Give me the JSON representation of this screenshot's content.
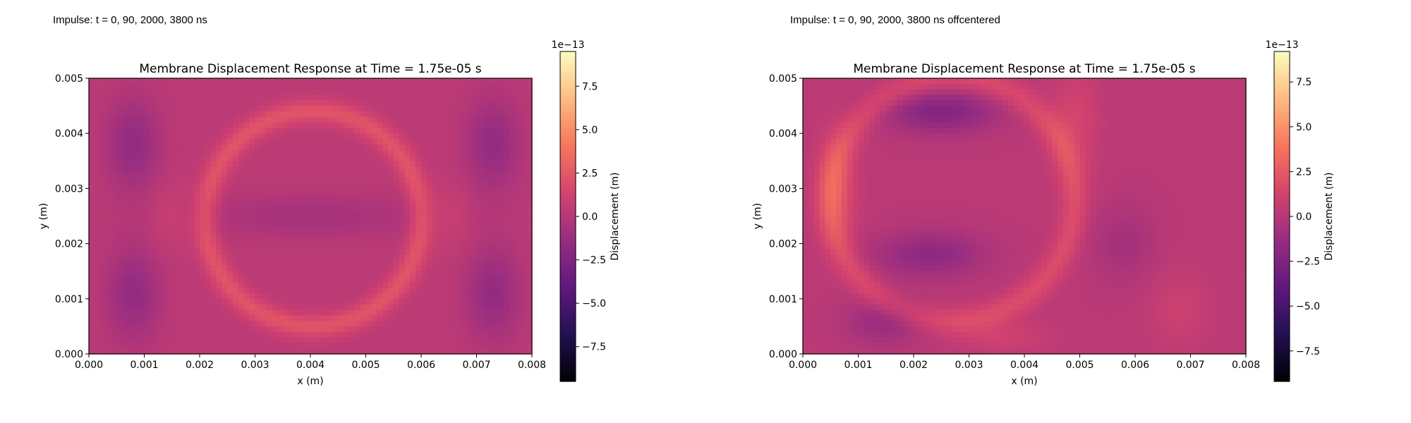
{
  "captions": {
    "left": "Impulse: t = 0, 90, 2000, 3800 ns",
    "right": "Impulse: t = 0, 90, 2000, 3800 ns offcentered"
  },
  "colormap": {
    "name": "magma",
    "stops": [
      "#000004",
      "#221150",
      "#5f187f",
      "#982d80",
      "#d3436e",
      "#f8765c",
      "#febb81",
      "#fcfdbf"
    ]
  },
  "chart_data": [
    {
      "type": "heatmap",
      "title": "Membrane Displacement Response at Time = 1.75e-05 s",
      "xlabel": "x (m)",
      "ylabel": "y (m)",
      "xlim": [
        0.0,
        0.008
      ],
      "ylim": [
        0.0,
        0.005
      ],
      "xticks": [
        "0.000",
        "0.001",
        "0.002",
        "0.003",
        "0.004",
        "0.005",
        "0.006",
        "0.007",
        "0.008"
      ],
      "yticks": [
        "0.000",
        "0.001",
        "0.002",
        "0.003",
        "0.004",
        "0.005"
      ],
      "colorbar": {
        "label": "Displacement (m)",
        "exponent_label": "1e−13",
        "range": [
          -9.5,
          9.5
        ],
        "ticks": [
          "−7.5",
          "−5.0",
          "−2.5",
          "0.0",
          "2.5",
          "5.0",
          "7.5"
        ],
        "tick_values": [
          -7.5,
          -5.0,
          -2.5,
          0.0,
          2.5,
          5.0,
          7.5
        ]
      },
      "field": {
        "base": 0.3,
        "features": [
          {
            "shape": "ring",
            "x": 0.00405,
            "y": 0.00245,
            "rx": 0.00195,
            "ry": 0.00195,
            "width": 0.00022,
            "amp": 2.0
          },
          {
            "shape": "blob",
            "x": 0.004,
            "y": 0.0025,
            "sx": 0.0016,
            "sy": 0.0003,
            "amp": -1.0
          },
          {
            "shape": "blob",
            "x": 0.0008,
            "y": 0.0038,
            "sx": 0.00035,
            "sy": 0.0006,
            "amp": -1.9
          },
          {
            "shape": "blob",
            "x": 0.0073,
            "y": 0.0038,
            "sx": 0.00035,
            "sy": 0.0006,
            "amp": -1.9
          },
          {
            "shape": "blob",
            "x": 0.0008,
            "y": 0.0011,
            "sx": 0.00035,
            "sy": 0.0006,
            "amp": -1.9
          },
          {
            "shape": "blob",
            "x": 0.0073,
            "y": 0.0011,
            "sx": 0.00035,
            "sy": 0.0006,
            "amp": -1.9
          },
          {
            "shape": "blob",
            "x": 0.0015,
            "y": 0.0025,
            "sx": 0.0003,
            "sy": 0.0004,
            "amp": 0.8
          },
          {
            "shape": "blob",
            "x": 0.0065,
            "y": 0.0025,
            "sx": 0.0003,
            "sy": 0.0004,
            "amp": 0.8
          }
        ]
      }
    },
    {
      "type": "heatmap",
      "title": "Membrane Displacement Response at Time = 1.75e-05 s",
      "xlabel": "x (m)",
      "ylabel": "y (m)",
      "xlim": [
        0.0,
        0.008
      ],
      "ylim": [
        0.0,
        0.005
      ],
      "xticks": [
        "0.000",
        "0.001",
        "0.002",
        "0.003",
        "0.004",
        "0.005",
        "0.006",
        "0.007",
        "0.008"
      ],
      "yticks": [
        "0.000",
        "0.001",
        "0.002",
        "0.003",
        "0.004",
        "0.005"
      ],
      "colorbar": {
        "label": "Displacement (m)",
        "exponent_label": "1e−13",
        "range": [
          -9.2,
          9.2
        ],
        "ticks": [
          "−7.5",
          "−5.0",
          "−2.5",
          "0.0",
          "2.5",
          "5.0",
          "7.5"
        ],
        "tick_values": [
          -7.5,
          -5.0,
          -2.5,
          0.0,
          2.5,
          5.0,
          7.5
        ]
      },
      "field": {
        "base": 0.2,
        "features": [
          {
            "shape": "ring",
            "x": 0.0027,
            "y": 0.0028,
            "rx": 0.0022,
            "ry": 0.0022,
            "width": 0.00025,
            "amp": 1.6
          },
          {
            "shape": "blob",
            "x": 0.0006,
            "y": 0.003,
            "sx": 0.00025,
            "sy": 0.0007,
            "amp": 1.8
          },
          {
            "shape": "blob",
            "x": 0.0025,
            "y": 0.0044,
            "sx": 0.0007,
            "sy": 0.00028,
            "amp": -2.5
          },
          {
            "shape": "blob",
            "x": 0.0023,
            "y": 0.0018,
            "sx": 0.0007,
            "sy": 0.0003,
            "amp": -2.0
          },
          {
            "shape": "blob",
            "x": 0.0015,
            "y": 0.0006,
            "sx": 0.0005,
            "sy": 0.0003,
            "amp": -1.6
          },
          {
            "shape": "blob",
            "x": 0.0049,
            "y": 0.0042,
            "sx": 0.0003,
            "sy": 0.0007,
            "amp": 1.2
          },
          {
            "shape": "blob",
            "x": 0.0068,
            "y": 0.0008,
            "sx": 0.0004,
            "sy": 0.0005,
            "amp": 0.8
          },
          {
            "shape": "blob",
            "x": 0.0058,
            "y": 0.002,
            "sx": 0.0004,
            "sy": 0.0005,
            "amp": -1.0
          },
          {
            "shape": "blob",
            "x": 0.0036,
            "y": 0.0003,
            "sx": 0.0006,
            "sy": 0.0002,
            "amp": 0.9
          }
        ]
      }
    }
  ]
}
